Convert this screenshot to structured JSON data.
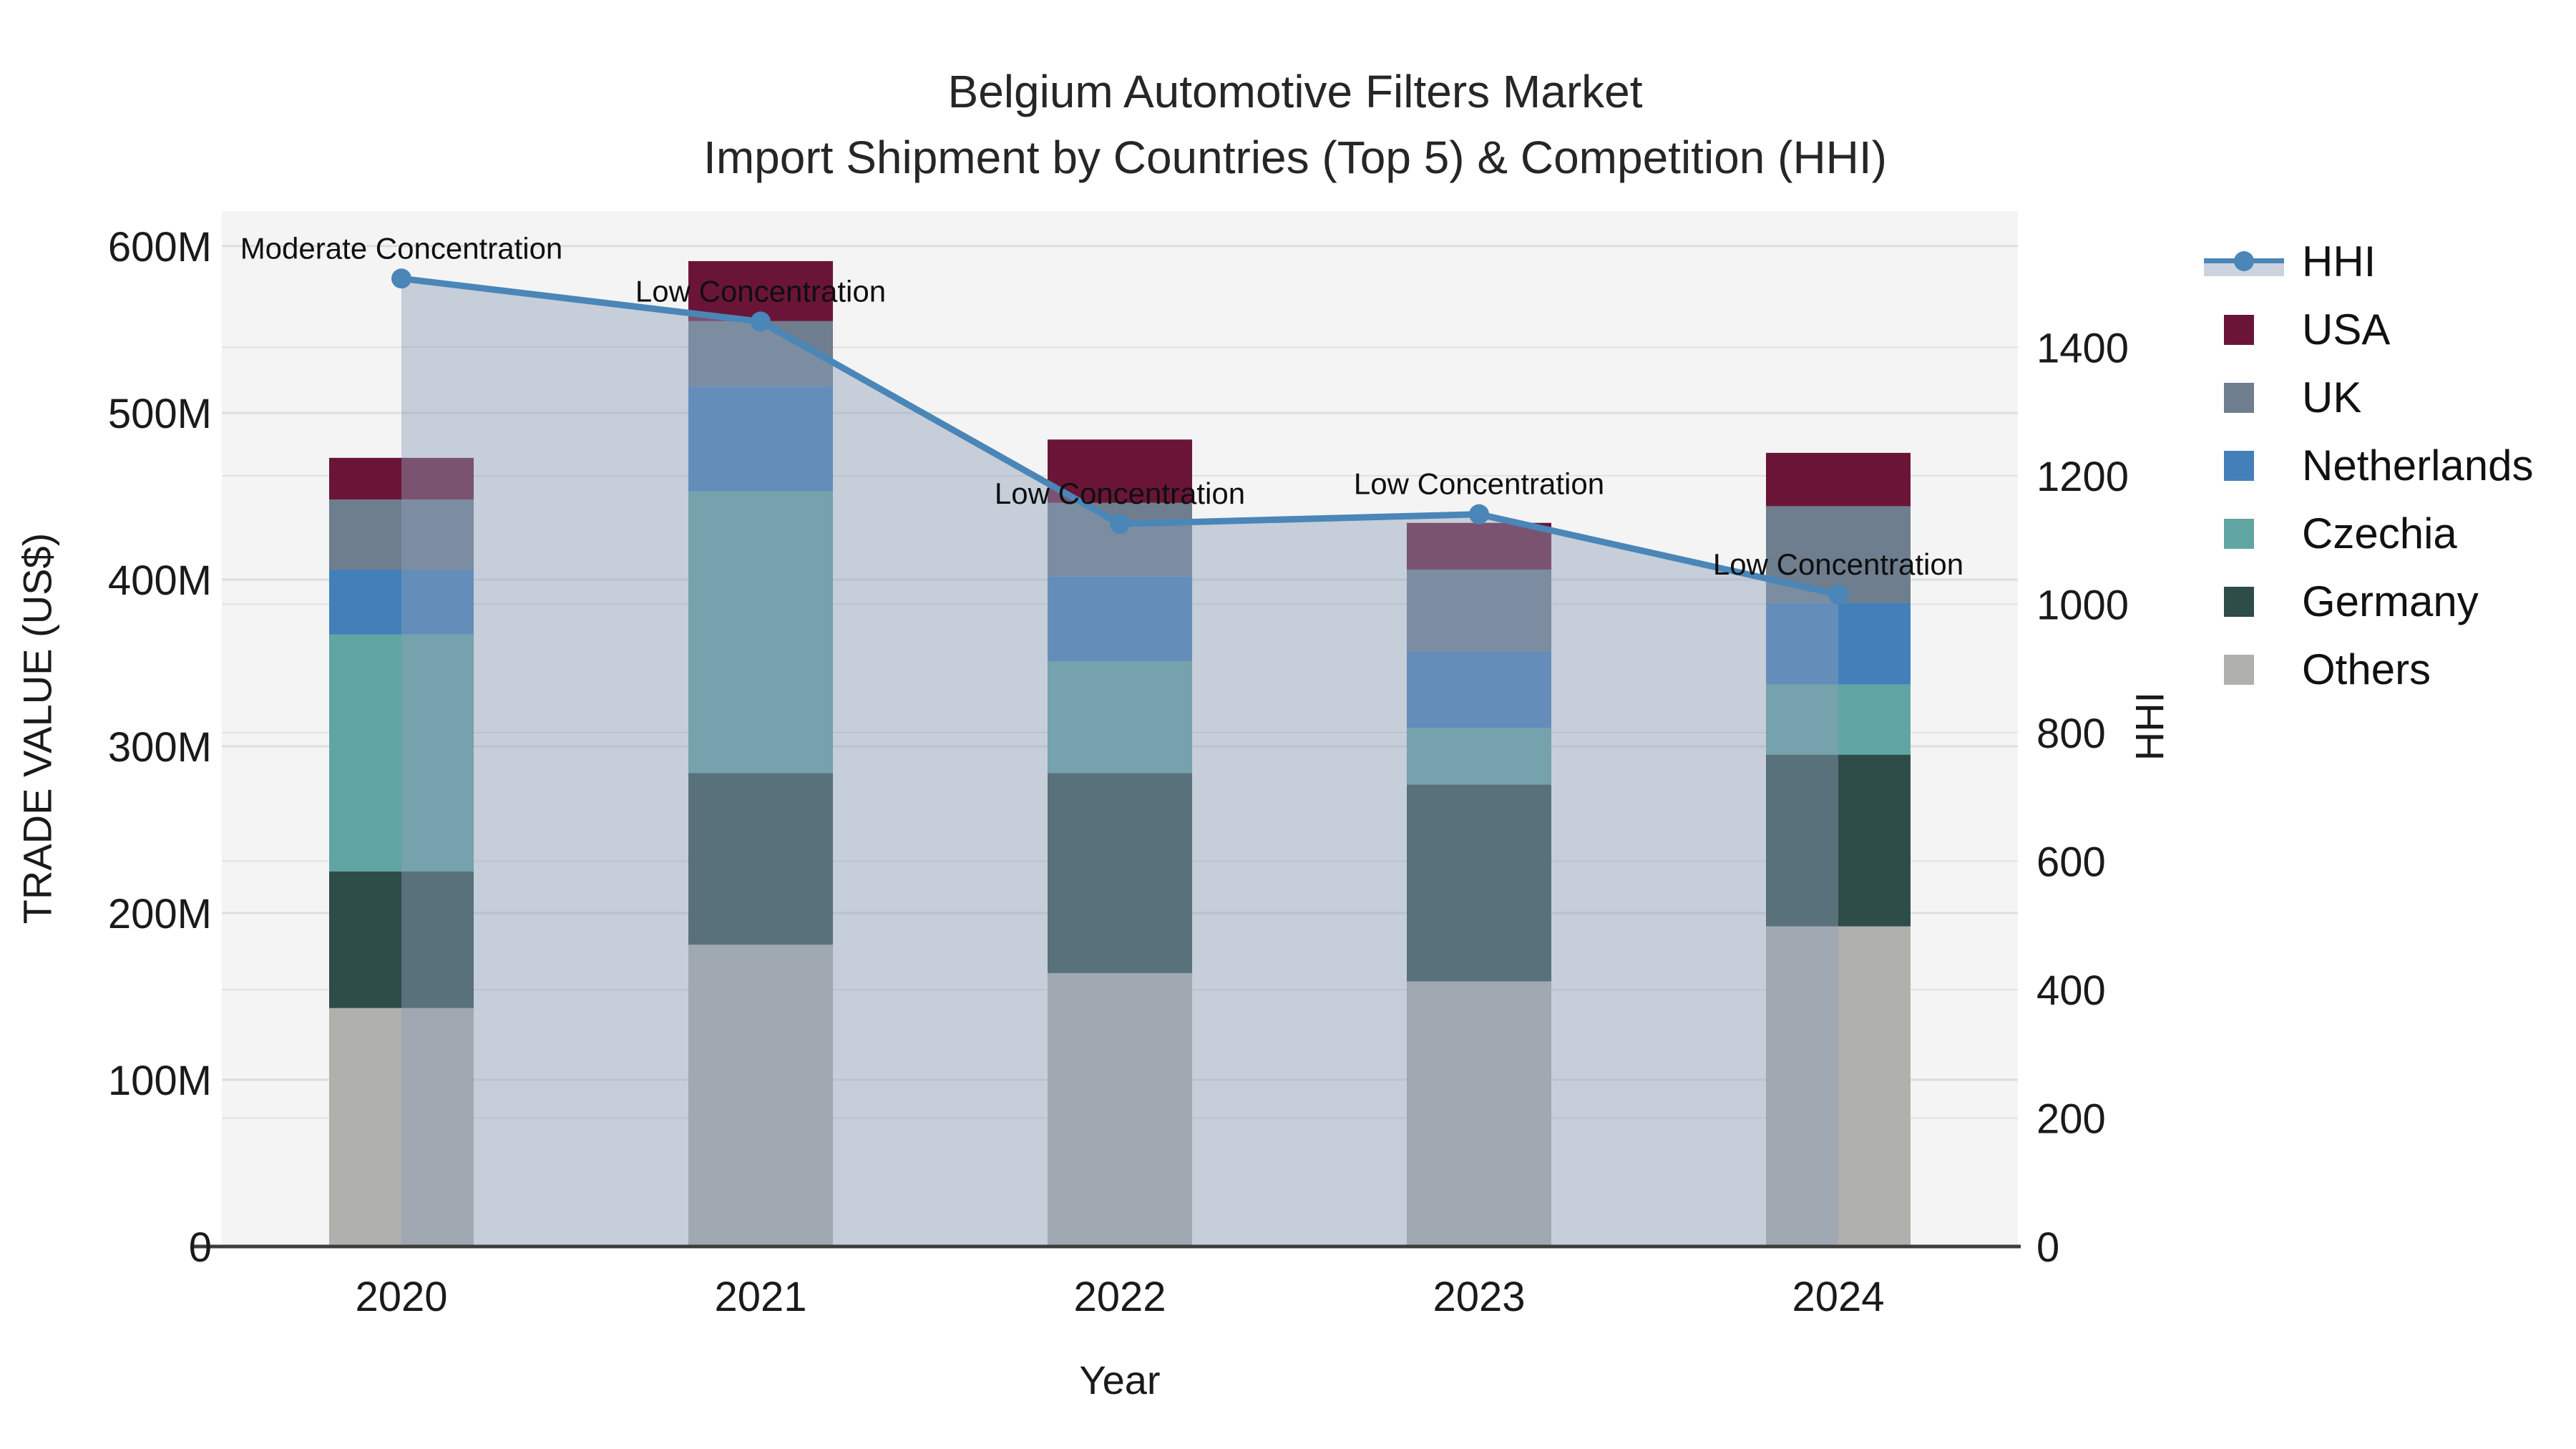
{
  "title": {
    "line1": "Belgium Automotive Filters Market",
    "line2": "Import Shipment by Countries (Top 5) & Competition (HHI)"
  },
  "axes": {
    "x": {
      "label": "Year"
    },
    "y_left": {
      "label": "TRADE VALUE (US$)",
      "tick_labels": [
        "0",
        "100M",
        "200M",
        "300M",
        "400M",
        "500M",
        "600M"
      ],
      "tick_values": [
        0,
        100,
        200,
        300,
        400,
        500,
        600
      ],
      "max": 621
    },
    "y_right": {
      "label": "HHI",
      "tick_labels": [
        "0",
        "200",
        "400",
        "600",
        "800",
        "1000",
        "1200",
        "1400"
      ],
      "tick_values": [
        0,
        200,
        400,
        600,
        800,
        1000,
        1200,
        1400
      ],
      "max": 1612
    }
  },
  "legend": {
    "items": [
      {
        "id": "hhi",
        "label": "HHI",
        "type": "line"
      },
      {
        "id": "usa",
        "label": "USA",
        "type": "swatch",
        "color": "#6a1537"
      },
      {
        "id": "uk",
        "label": "UK",
        "type": "swatch",
        "color": "#6e7e8e"
      },
      {
        "id": "netherlands",
        "label": "Netherlands",
        "type": "swatch",
        "color": "#4380ba"
      },
      {
        "id": "czechia",
        "label": "Czechia",
        "type": "swatch",
        "color": "#61a5a2"
      },
      {
        "id": "germany",
        "label": "Germany",
        "type": "swatch",
        "color": "#2e4c48"
      },
      {
        "id": "others",
        "label": "Others",
        "type": "swatch",
        "color": "#b0b0ad"
      }
    ]
  },
  "chart_data": {
    "type": "bar",
    "subtype": "stacked-bars-with-line",
    "title": "Belgium Automotive Filters Market — Import Shipment by Countries (Top 5) & Competition (HHI)",
    "xlabel": "Year",
    "ylabel_left": "TRADE VALUE (US$)",
    "ylabel_right": "HHI",
    "categories": [
      "2020",
      "2021",
      "2022",
      "2023",
      "2024"
    ],
    "series": [
      {
        "name": "Others",
        "color": "#b0b0ad",
        "values": [
          143,
          181,
          164,
          159,
          192
        ]
      },
      {
        "name": "Germany",
        "color": "#2e4c48",
        "values": [
          82,
          103,
          120,
          118,
          103
        ]
      },
      {
        "name": "Czechia",
        "color": "#61a5a2",
        "values": [
          142,
          169,
          67,
          34,
          42
        ]
      },
      {
        "name": "Netherlands",
        "color": "#4380ba",
        "values": [
          39,
          63,
          51,
          46,
          49
        ]
      },
      {
        "name": "UK",
        "color": "#6e7e8e",
        "values": [
          42,
          39,
          44,
          49,
          58
        ]
      },
      {
        "name": "USA",
        "color": "#6a1537",
        "values": [
          25,
          36,
          38,
          28,
          32
        ]
      }
    ],
    "bar_totals_M": [
      473,
      591,
      484,
      434,
      476
    ],
    "line_series": {
      "name": "HHI",
      "axis": "right",
      "color": "#4a86b8",
      "area_fill": "rgba(143,160,184,0.45)",
      "values": [
        1507,
        1440,
        1125,
        1140,
        1015
      ]
    },
    "annotations": [
      "Moderate Concentration",
      "Low Concentration",
      "Low Concentration",
      "Low Concentration",
      "Low Concentration"
    ],
    "ylim_left": [
      0,
      621
    ],
    "ylim_right": [
      0,
      1612
    ],
    "grid": true,
    "legend_position": "right-outside"
  },
  "style": {
    "plot_bg": "#f4f4f4",
    "grid_color": "#dcdede",
    "spine_color": "#3d3d3d",
    "tick_color": "#1a1a1a",
    "annotation_color": "#0f0f0f"
  }
}
